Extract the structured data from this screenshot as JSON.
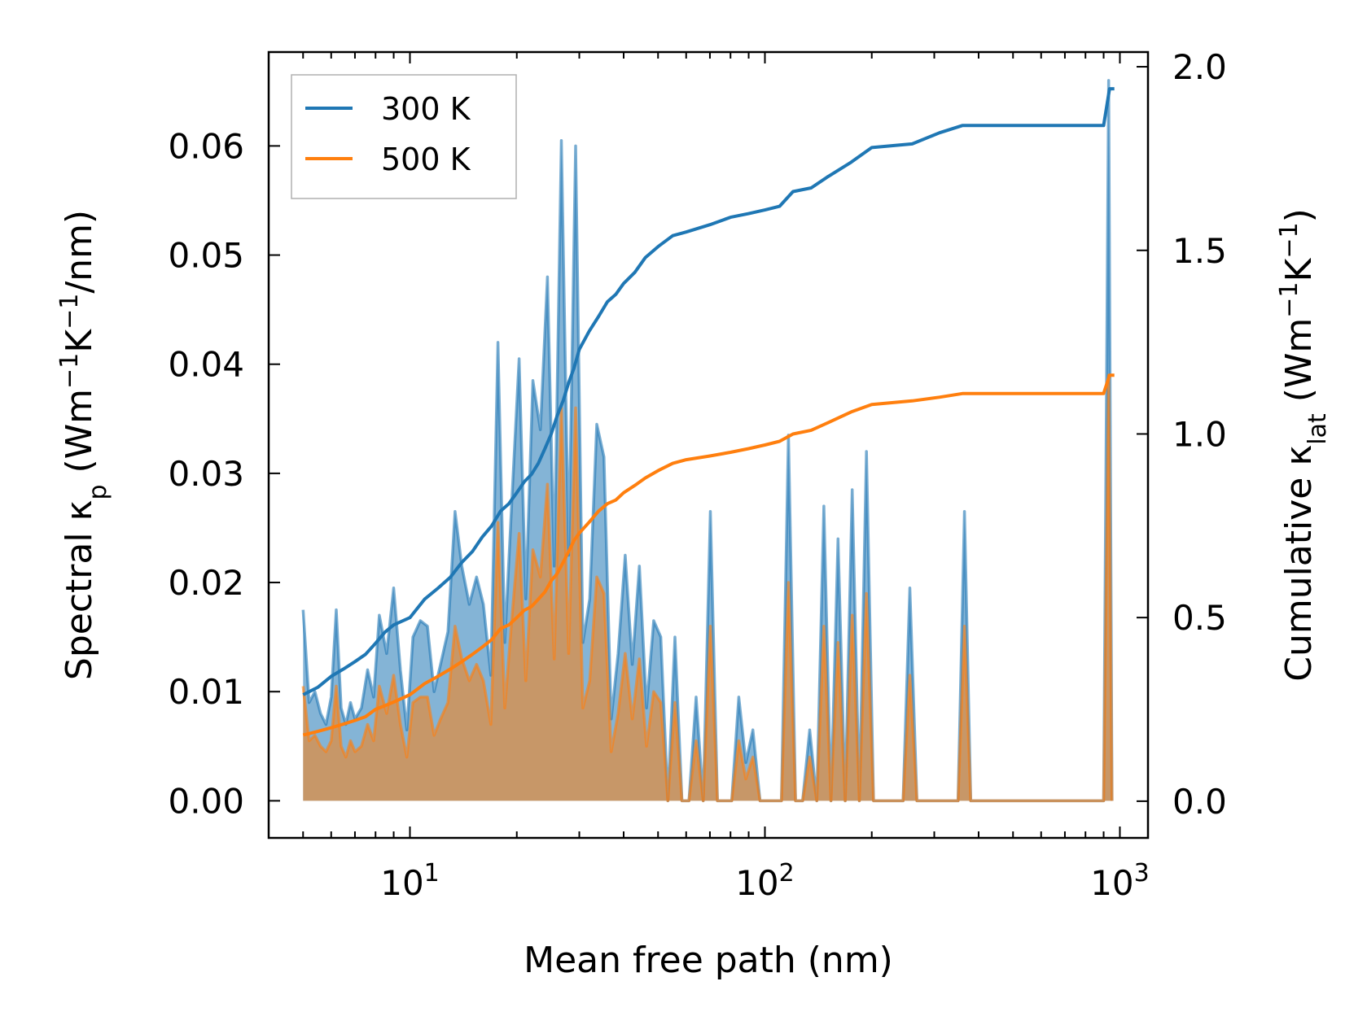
{
  "chart_data": {
    "type": "line",
    "xscale": "log",
    "xlabel": "Mean free path (nm)",
    "ylabel_left": {
      "main": "Spectral κ",
      "sub": "p",
      "units_prefix": " (Wm",
      "exp1": "−1",
      "mid": "K",
      "exp2": "−1",
      "units_suffix": "/nm)"
    },
    "ylabel_right": {
      "main": "Cumulative κ",
      "sub": "lat",
      "units_prefix": " (Wm",
      "exp1": "−1",
      "mid": "K",
      "exp2": "−1",
      "units_suffix": ")"
    },
    "xlim": [
      4.0,
      1200
    ],
    "ylim_left": [
      -0.0034,
      0.0686
    ],
    "ylim_right": [
      -0.1,
      2.04
    ],
    "x_ticks": [
      {
        "value": 10,
        "base": "10",
        "exp": "1"
      },
      {
        "value": 100,
        "base": "10",
        "exp": "2"
      },
      {
        "value": 1000,
        "base": "10",
        "exp": "3"
      }
    ],
    "y_ticks_left": [
      "0.00",
      "0.01",
      "0.02",
      "0.03",
      "0.04",
      "0.05",
      "0.06"
    ],
    "y_ticks_right": [
      "0.0",
      "0.5",
      "1.0",
      "1.5",
      "2.0"
    ],
    "legend": {
      "position": "top-left",
      "entries": [
        {
          "label": "300 K",
          "color": "#1f77b4"
        },
        {
          "label": "500 K",
          "color": "#ff7f0e"
        }
      ]
    },
    "series": [
      {
        "name": "300 K",
        "color": "#1f77b4",
        "spectral": [
          [
            5.0,
            0.0175
          ],
          [
            5.2,
            0.009
          ],
          [
            5.4,
            0.01
          ],
          [
            5.6,
            0.008
          ],
          [
            5.8,
            0.007
          ],
          [
            6.0,
            0.0095
          ],
          [
            6.2,
            0.0175
          ],
          [
            6.4,
            0.0085
          ],
          [
            6.6,
            0.007
          ],
          [
            6.8,
            0.009
          ],
          [
            7.0,
            0.0075
          ],
          [
            7.3,
            0.0085
          ],
          [
            7.6,
            0.012
          ],
          [
            7.9,
            0.0095
          ],
          [
            8.2,
            0.017
          ],
          [
            8.6,
            0.0135
          ],
          [
            9.0,
            0.0195
          ],
          [
            9.4,
            0.012
          ],
          [
            9.8,
            0.0065
          ],
          [
            10.2,
            0.015
          ],
          [
            10.7,
            0.0165
          ],
          [
            11.2,
            0.016
          ],
          [
            11.7,
            0.01
          ],
          [
            12.2,
            0.0125
          ],
          [
            12.8,
            0.0155
          ],
          [
            13.4,
            0.0265
          ],
          [
            14.0,
            0.0215
          ],
          [
            14.7,
            0.018
          ],
          [
            15.4,
            0.0205
          ],
          [
            16.1,
            0.018
          ],
          [
            16.9,
            0.0115
          ],
          [
            17.7,
            0.042
          ],
          [
            18.5,
            0.0145
          ],
          [
            19.4,
            0.028
          ],
          [
            20.3,
            0.0405
          ],
          [
            21.2,
            0.0185
          ],
          [
            22.2,
            0.0385
          ],
          [
            23.3,
            0.034
          ],
          [
            24.4,
            0.048
          ],
          [
            25.5,
            0.0215
          ],
          [
            26.7,
            0.0605
          ],
          [
            28.0,
            0.0225
          ],
          [
            29.3,
            0.06
          ],
          [
            30.7,
            0.0145
          ],
          [
            32.1,
            0.0185
          ],
          [
            33.6,
            0.0345
          ],
          [
            35.2,
            0.0315
          ],
          [
            36.9,
            0.0075
          ],
          [
            38.6,
            0.0135
          ],
          [
            40.4,
            0.0225
          ],
          [
            42.3,
            0.0125
          ],
          [
            44.3,
            0.0215
          ],
          [
            46.4,
            0.0085
          ],
          [
            48.6,
            0.0165
          ],
          [
            50.9,
            0.015
          ],
          [
            53.3,
            0.0
          ],
          [
            55.8,
            0.015
          ],
          [
            58.4,
            0.0
          ],
          [
            61.1,
            0.0
          ],
          [
            64.0,
            0.0095
          ],
          [
            67.0,
            0.0
          ],
          [
            70.2,
            0.0265
          ],
          [
            73.5,
            0.0
          ],
          [
            77.0,
            0.0
          ],
          [
            80.6,
            0.0
          ],
          [
            84.4,
            0.0095
          ],
          [
            88.4,
            0.0035
          ],
          [
            92.5,
            0.0065
          ],
          [
            96.9,
            0.0
          ],
          [
            101.5,
            0.0
          ],
          [
            106.3,
            0.0
          ],
          [
            111.3,
            0.0
          ],
          [
            116.5,
            0.0335
          ],
          [
            122.0,
            0.0
          ],
          [
            127.7,
            0.0
          ],
          [
            133.7,
            0.0065
          ],
          [
            140.0,
            0.0
          ],
          [
            146.6,
            0.027
          ],
          [
            153.5,
            0.0
          ],
          [
            160.7,
            0.024
          ],
          [
            168.3,
            0.0
          ],
          [
            176.2,
            0.0285
          ],
          [
            184.5,
            0.0
          ],
          [
            193.2,
            0.032
          ],
          [
            202.3,
            0.0
          ],
          [
            211.8,
            0.0
          ],
          [
            245.0,
            0.0
          ],
          [
            256.0,
            0.0195
          ],
          [
            268.0,
            0.0
          ],
          [
            350.0,
            0.0
          ],
          [
            365.0,
            0.0265
          ],
          [
            380.0,
            0.0
          ],
          [
            900.0,
            0.0
          ],
          [
            930.0,
            0.066
          ],
          [
            950.0,
            0.0
          ]
        ],
        "cumulative": [
          [
            5.0,
            0.29
          ],
          [
            5.5,
            0.31
          ],
          [
            6.0,
            0.34
          ],
          [
            6.5,
            0.36
          ],
          [
            7.0,
            0.38
          ],
          [
            7.5,
            0.4
          ],
          [
            8.0,
            0.43
          ],
          [
            8.5,
            0.46
          ],
          [
            9.0,
            0.48
          ],
          [
            10.0,
            0.5
          ],
          [
            11.0,
            0.55
          ],
          [
            12.0,
            0.58
          ],
          [
            13.0,
            0.61
          ],
          [
            14.0,
            0.65
          ],
          [
            15.0,
            0.68
          ],
          [
            16.0,
            0.72
          ],
          [
            17.0,
            0.75
          ],
          [
            18.0,
            0.79
          ],
          [
            19.0,
            0.81
          ],
          [
            20.0,
            0.84
          ],
          [
            21.0,
            0.87
          ],
          [
            22.0,
            0.89
          ],
          [
            23.0,
            0.92
          ],
          [
            24.0,
            0.96
          ],
          [
            25.0,
            1.0
          ],
          [
            26.0,
            1.05
          ],
          [
            27.0,
            1.09
          ],
          [
            28.0,
            1.14
          ],
          [
            29.0,
            1.18
          ],
          [
            30.0,
            1.23
          ],
          [
            32.0,
            1.28
          ],
          [
            34.0,
            1.32
          ],
          [
            36.0,
            1.36
          ],
          [
            38.0,
            1.38
          ],
          [
            40.0,
            1.41
          ],
          [
            43.0,
            1.44
          ],
          [
            46.0,
            1.48
          ],
          [
            50.0,
            1.51
          ],
          [
            55.0,
            1.54
          ],
          [
            60.0,
            1.55
          ],
          [
            70.0,
            1.57
          ],
          [
            80.0,
            1.59
          ],
          [
            90.0,
            1.6
          ],
          [
            100.0,
            1.61
          ],
          [
            110.0,
            1.62
          ],
          [
            120.0,
            1.66
          ],
          [
            135.0,
            1.67
          ],
          [
            150.0,
            1.7
          ],
          [
            175.0,
            1.74
          ],
          [
            200.0,
            1.78
          ],
          [
            260.0,
            1.79
          ],
          [
            310.0,
            1.82
          ],
          [
            360.0,
            1.84
          ],
          [
            900.0,
            1.84
          ],
          [
            935.0,
            1.94
          ],
          [
            965.0,
            1.94
          ]
        ]
      },
      {
        "name": "500 K",
        "color": "#ff7f0e",
        "spectral": [
          [
            5.0,
            0.0105
          ],
          [
            5.2,
            0.0055
          ],
          [
            5.4,
            0.006
          ],
          [
            5.6,
            0.005
          ],
          [
            5.8,
            0.0045
          ],
          [
            6.0,
            0.0055
          ],
          [
            6.2,
            0.0105
          ],
          [
            6.4,
            0.005
          ],
          [
            6.6,
            0.004
          ],
          [
            6.8,
            0.0055
          ],
          [
            7.0,
            0.0045
          ],
          [
            7.3,
            0.005
          ],
          [
            7.6,
            0.007
          ],
          [
            7.9,
            0.0055
          ],
          [
            8.2,
            0.0105
          ],
          [
            8.6,
            0.008
          ],
          [
            9.0,
            0.0115
          ],
          [
            9.4,
            0.007
          ],
          [
            9.8,
            0.004
          ],
          [
            10.2,
            0.009
          ],
          [
            10.7,
            0.0095
          ],
          [
            11.2,
            0.0095
          ],
          [
            11.7,
            0.006
          ],
          [
            12.2,
            0.0075
          ],
          [
            12.8,
            0.009
          ],
          [
            13.4,
            0.016
          ],
          [
            14.0,
            0.013
          ],
          [
            14.7,
            0.011
          ],
          [
            15.4,
            0.0125
          ],
          [
            16.1,
            0.011
          ],
          [
            16.9,
            0.007
          ],
          [
            17.7,
            0.0255
          ],
          [
            18.5,
            0.0085
          ],
          [
            19.4,
            0.017
          ],
          [
            20.3,
            0.0245
          ],
          [
            21.2,
            0.011
          ],
          [
            22.2,
            0.023
          ],
          [
            23.3,
            0.0205
          ],
          [
            24.4,
            0.029
          ],
          [
            25.5,
            0.013
          ],
          [
            26.7,
            0.036
          ],
          [
            28.0,
            0.0135
          ],
          [
            29.3,
            0.036
          ],
          [
            30.7,
            0.0085
          ],
          [
            32.1,
            0.011
          ],
          [
            33.6,
            0.0205
          ],
          [
            35.2,
            0.019
          ],
          [
            36.9,
            0.0045
          ],
          [
            38.6,
            0.008
          ],
          [
            40.4,
            0.0135
          ],
          [
            42.3,
            0.0075
          ],
          [
            44.3,
            0.013
          ],
          [
            46.4,
            0.005
          ],
          [
            48.6,
            0.01
          ],
          [
            50.9,
            0.009
          ],
          [
            53.3,
            0.0
          ],
          [
            55.8,
            0.009
          ],
          [
            58.4,
            0.0
          ],
          [
            61.1,
            0.0
          ],
          [
            64.0,
            0.0055
          ],
          [
            67.0,
            0.0
          ],
          [
            70.2,
            0.016
          ],
          [
            73.5,
            0.0
          ],
          [
            77.0,
            0.0
          ],
          [
            80.6,
            0.0
          ],
          [
            84.4,
            0.0055
          ],
          [
            88.4,
            0.002
          ],
          [
            92.5,
            0.004
          ],
          [
            96.9,
            0.0
          ],
          [
            101.5,
            0.0
          ],
          [
            106.3,
            0.0
          ],
          [
            111.3,
            0.0
          ],
          [
            116.5,
            0.02
          ],
          [
            122.0,
            0.0
          ],
          [
            127.7,
            0.0
          ],
          [
            133.7,
            0.004
          ],
          [
            140.0,
            0.0
          ],
          [
            146.6,
            0.016
          ],
          [
            153.5,
            0.0
          ],
          [
            160.7,
            0.0145
          ],
          [
            168.3,
            0.0
          ],
          [
            176.2,
            0.017
          ],
          [
            184.5,
            0.0
          ],
          [
            193.2,
            0.019
          ],
          [
            202.3,
            0.0
          ],
          [
            211.8,
            0.0
          ],
          [
            245.0,
            0.0
          ],
          [
            256.0,
            0.0115
          ],
          [
            268.0,
            0.0
          ],
          [
            350.0,
            0.0
          ],
          [
            365.0,
            0.016
          ],
          [
            380.0,
            0.0
          ],
          [
            900.0,
            0.0
          ],
          [
            930.0,
            0.039
          ],
          [
            950.0,
            0.0
          ]
        ],
        "cumulative": [
          [
            5.0,
            0.18
          ],
          [
            5.5,
            0.19
          ],
          [
            6.0,
            0.2
          ],
          [
            6.5,
            0.21
          ],
          [
            7.0,
            0.22
          ],
          [
            7.5,
            0.23
          ],
          [
            8.0,
            0.25
          ],
          [
            8.5,
            0.26
          ],
          [
            9.0,
            0.27
          ],
          [
            10.0,
            0.29
          ],
          [
            11.0,
            0.32
          ],
          [
            12.0,
            0.34
          ],
          [
            13.0,
            0.36
          ],
          [
            14.0,
            0.38
          ],
          [
            15.0,
            0.4
          ],
          [
            16.0,
            0.42
          ],
          [
            17.0,
            0.44
          ],
          [
            18.0,
            0.47
          ],
          [
            19.0,
            0.48
          ],
          [
            20.0,
            0.5
          ],
          [
            21.0,
            0.52
          ],
          [
            22.0,
            0.53
          ],
          [
            23.0,
            0.55
          ],
          [
            24.0,
            0.57
          ],
          [
            25.0,
            0.6
          ],
          [
            26.0,
            0.62
          ],
          [
            27.0,
            0.65
          ],
          [
            28.0,
            0.68
          ],
          [
            29.0,
            0.71
          ],
          [
            30.0,
            0.73
          ],
          [
            32.0,
            0.76
          ],
          [
            34.0,
            0.79
          ],
          [
            36.0,
            0.81
          ],
          [
            38.0,
            0.82
          ],
          [
            40.0,
            0.84
          ],
          [
            43.0,
            0.86
          ],
          [
            46.0,
            0.88
          ],
          [
            50.0,
            0.9
          ],
          [
            55.0,
            0.92
          ],
          [
            60.0,
            0.93
          ],
          [
            70.0,
            0.94
          ],
          [
            80.0,
            0.95
          ],
          [
            90.0,
            0.96
          ],
          [
            100.0,
            0.97
          ],
          [
            110.0,
            0.98
          ],
          [
            120.0,
            1.0
          ],
          [
            135.0,
            1.01
          ],
          [
            150.0,
            1.03
          ],
          [
            175.0,
            1.06
          ],
          [
            200.0,
            1.08
          ],
          [
            260.0,
            1.09
          ],
          [
            310.0,
            1.1
          ],
          [
            360.0,
            1.11
          ],
          [
            900.0,
            1.11
          ],
          [
            935.0,
            1.16
          ],
          [
            965.0,
            1.16
          ]
        ]
      }
    ]
  }
}
